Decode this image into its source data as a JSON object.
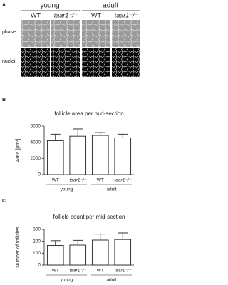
{
  "panel_a": {
    "panel": "A",
    "groups": [
      "young",
      "adult"
    ],
    "columns": [
      "WT",
      "taar1⁻/⁻",
      "WT",
      "taar1⁻/⁻"
    ],
    "rows": [
      "phase",
      "nuclei"
    ]
  },
  "chart_data": [
    {
      "type": "bar",
      "panel": "B",
      "title": "follicle area per mid-section",
      "ylabel": "Area [µm²]",
      "categories": [
        "WT",
        "taar1⁻/⁻",
        "WT",
        "taar1⁻/⁻"
      ],
      "groups": [
        "young",
        "adult"
      ],
      "values": [
        4200,
        4750,
        4850,
        4550
      ],
      "errors": [
        800,
        900,
        350,
        450
      ],
      "color": "#ffffff",
      "ylim": [
        0,
        6000
      ],
      "yticks": [
        0,
        2000,
        4000,
        6000
      ]
    },
    {
      "type": "bar",
      "panel": "C",
      "title": "follicle count per mid-section",
      "ylabel": "Number of follicles",
      "categories": [
        "WT",
        "taar1⁻/⁻",
        "WT",
        "taar1⁻/⁻"
      ],
      "groups": [
        "young",
        "adult"
      ],
      "values": [
        165,
        168,
        210,
        215
      ],
      "errors": [
        40,
        40,
        50,
        55
      ],
      "color": "#ffffff",
      "ylim": [
        0,
        300
      ],
      "yticks": [
        0,
        100,
        200,
        300
      ]
    }
  ]
}
